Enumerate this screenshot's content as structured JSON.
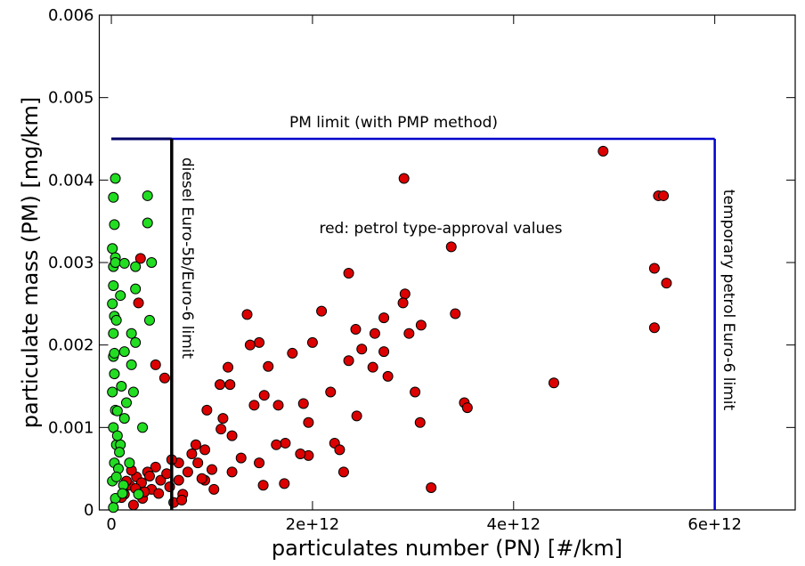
{
  "chart_data": {
    "type": "scatter",
    "x_label": "particulates number (PN) [#/km]",
    "y_label": "particulate mass (PM) [mg/km]",
    "xlim": [
      -120000000000.0,
      6800000000000.0
    ],
    "ylim": [
      0,
      0.006
    ],
    "xticks": [
      0,
      {
        "value": 2000000000000.0,
        "label": "2e+12"
      },
      {
        "value": 4000000000000.0,
        "label": "4e+12"
      },
      {
        "value": 6000000000000.0,
        "label": "6e+12"
      }
    ],
    "yticks": [
      0,
      0.001,
      0.002,
      0.003,
      0.004,
      0.005,
      0.006
    ],
    "limits": {
      "pm_limit": {
        "value": 0.0045,
        "label": "PM limit (with PMP method)",
        "color": "#0000cc",
        "head_color": "#000066"
      },
      "diesel_pn_limit": {
        "value": 600000000000.0,
        "label": "diesel Euro-5b/Euro-6 limit",
        "color": "#000000"
      },
      "petrol_pn_limit": {
        "value": 6000000000000.0,
        "label": "temporary petrol Euro-6 limit",
        "color": "#0000cc"
      }
    },
    "annotation": "red: petrol type-approval values",
    "series": [
      {
        "color": "#dd0000",
        "x": [
          4890000000000.0,
          2910000000000.0,
          5440000000000.0,
          5490000000000.0,
          3380000000000.0,
          2360000000000.0,
          5400000000000.0,
          2920000000000.0,
          5520000000000.0,
          2900000000000.0,
          1350000000000.0,
          2090000000000.0,
          3420000000000.0,
          2710000000000.0,
          3080000000000.0,
          2430000000000.0,
          5400000000000.0,
          1470000000000.0,
          1380000000000.0,
          2620000000000.0,
          2960000000000.0,
          2710000000000.0,
          2490000000000.0,
          1800000000000.0,
          2000000000000.0,
          1160000000000.0,
          2360000000000.0,
          2600000000000.0,
          1560000000000.0,
          1180000000000.0,
          1080000000000.0,
          4400000000000.0,
          1520000000000.0,
          2180000000000.0,
          3020000000000.0,
          2750000000000.0,
          1420000000000.0,
          1660000000000.0,
          1910000000000.0,
          3510000000000.0,
          3540000000000.0,
          950000000000.0,
          2440000000000.0,
          3070000000000.0,
          2220000000000.0,
          2270000000000.0,
          1960000000000.0,
          1880000000000.0,
          1730000000000.0,
          1640000000000.0,
          1200000000000.0,
          1090000000000.0,
          930000000000.0,
          860000000000.0,
          760000000000.0,
          670000000000.0,
          710000000000.0,
          930000000000.0,
          1200000000000.0,
          1470000000000.0,
          1510000000000.0,
          1720000000000.0,
          2310000000000.0,
          3180000000000.0,
          1020000000000.0,
          1290000000000.0,
          490000000000.0,
          400000000000.0,
          310000000000.0,
          220000000000.0,
          180000000000.0,
          130000000000.0,
          270000000000.0,
          290000000000.0,
          440000000000.0,
          530000000000.0,
          620000000000.0,
          840000000000.0,
          800000000000.0,
          1110000000000.0,
          1960000000000.0,
          670000000000.0,
          440000000000.0,
          360000000000.0,
          250000000000.0,
          330000000000.0,
          150000000000.0,
          580000000000.0,
          700000000000.0,
          550000000000.0,
          380000000000.0,
          200000000000.0,
          100000000000.0,
          470000000000.0,
          900000000000.0,
          1000000000000.0,
          600000000000.0,
          300000000000.0,
          240000000000.0
        ],
        "values": [
          0.00435,
          0.00402,
          0.00381,
          0.00381,
          0.00319,
          0.00287,
          0.00293,
          0.00262,
          0.00275,
          0.00251,
          0.00237,
          0.00241,
          0.00238,
          0.00233,
          0.00224,
          0.00219,
          0.00221,
          0.00203,
          0.002,
          0.00214,
          0.00214,
          0.00192,
          0.00195,
          0.0019,
          0.00203,
          0.00173,
          0.00181,
          0.00173,
          0.00174,
          0.00152,
          0.00152,
          0.00154,
          0.00139,
          0.00143,
          0.00143,
          0.00162,
          0.00127,
          0.00127,
          0.00129,
          0.0013,
          0.00124,
          0.00121,
          0.00114,
          0.00106,
          0.00081,
          0.00073,
          0.00066,
          0.00068,
          0.00081,
          0.00079,
          0.0009,
          0.00098,
          0.00073,
          0.00057,
          0.00046,
          0.00036,
          0.00019,
          0.00036,
          0.00046,
          0.00057,
          0.0003,
          0.00032,
          0.00046,
          0.00027,
          0.00025,
          0.00063,
          0.00036,
          0.00025,
          0.00014,
          6e-05,
          0.0003,
          0.00019,
          0.00251,
          0.00305,
          0.00176,
          0.0016,
          9e-05,
          0.00079,
          0.00068,
          0.00111,
          0.00106,
          0.00057,
          0.00052,
          0.00046,
          0.0004,
          0.00022,
          0.00035,
          0.00028,
          0.00012,
          0.00044,
          0.00041,
          0.00048,
          0.00015,
          0.0002,
          0.00038,
          0.00049,
          0.00061,
          0.00033,
          0.00026
        ]
      },
      {
        "color": "#22dd22",
        "x": [
          40000000000.0,
          20000000000.0,
          360000000000.0,
          360000000000.0,
          30000000000.0,
          10000000000.0,
          20000000000.0,
          40000000000.0,
          40000000000.0,
          130000000000.0,
          400000000000.0,
          240000000000.0,
          240000000000.0,
          20000000000.0,
          10000000000.0,
          30000000000.0,
          50000000000.0,
          20000000000.0,
          380000000000.0,
          200000000000.0,
          240000000000.0,
          130000000000.0,
          200000000000.0,
          20000000000.0,
          30000000000.0,
          10000000000.0,
          40000000000.0,
          20000000000.0,
          50000000000.0,
          30000000000.0,
          10000000000.0,
          40000000000.0,
          20000000000.0,
          220000000000.0,
          130000000000.0,
          310000000000.0,
          90000000000.0,
          180000000000.0,
          120000000000.0,
          270000000000.0,
          100000000000.0,
          150000000000.0,
          60000000000.0,
          80000000000.0,
          70000000000.0,
          50000000000.0,
          110000000000.0,
          60000000000.0,
          90000000000.0,
          30000000000.0
        ],
        "values": [
          0.00402,
          0.00379,
          0.00381,
          0.00348,
          0.00346,
          0.00317,
          0.00295,
          0.00306,
          0.003,
          0.00299,
          0.003,
          0.00295,
          0.00268,
          0.00272,
          0.0025,
          0.00235,
          0.0023,
          0.00214,
          0.0023,
          0.00214,
          0.00203,
          0.00192,
          0.00176,
          0.00186,
          0.00165,
          0.00143,
          0.00121,
          0.001,
          0.00079,
          0.00057,
          0.00035,
          0.00014,
          3e-05,
          0.00143,
          0.00111,
          0.001,
          0.00079,
          0.00057,
          0.0003,
          0.00019,
          0.0015,
          0.0013,
          0.0009,
          0.0007,
          0.0005,
          0.0004,
          0.0002,
          0.0012,
          0.0026,
          0.0019
        ]
      }
    ]
  }
}
